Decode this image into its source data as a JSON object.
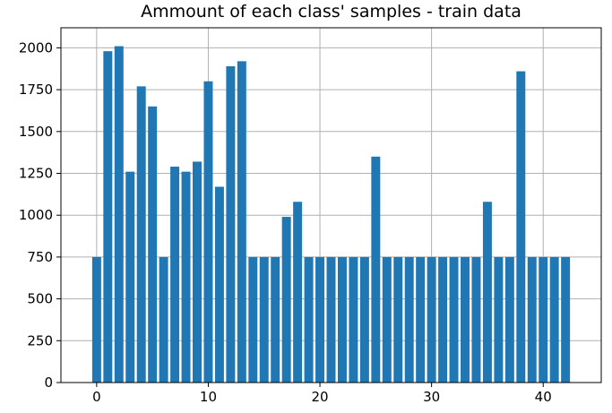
{
  "chart_data": {
    "type": "bar",
    "title": "Ammount of each class' samples - train data",
    "xlabel": "",
    "ylabel": "",
    "categories": [
      0,
      1,
      2,
      3,
      4,
      5,
      6,
      7,
      8,
      9,
      10,
      11,
      12,
      13,
      14,
      15,
      16,
      17,
      18,
      19,
      20,
      21,
      22,
      23,
      24,
      25,
      26,
      27,
      28,
      29,
      30,
      31,
      32,
      33,
      34,
      35,
      36,
      37,
      38,
      39,
      40,
      41,
      42
    ],
    "values": [
      750,
      1980,
      2010,
      1260,
      1770,
      1650,
      750,
      1290,
      1260,
      1320,
      1800,
      1170,
      1890,
      1920,
      750,
      750,
      750,
      990,
      1080,
      750,
      750,
      750,
      750,
      750,
      750,
      1350,
      750,
      750,
      750,
      750,
      750,
      750,
      750,
      750,
      750,
      1080,
      750,
      750,
      1860,
      750,
      750,
      750,
      750
    ],
    "xlim": [
      -3.2,
      45.2
    ],
    "ylim": [
      0,
      2120
    ],
    "xticks": [
      0,
      10,
      20,
      30,
      40
    ],
    "yticks": [
      0,
      250,
      500,
      750,
      1000,
      1250,
      1500,
      1750,
      2000
    ],
    "grid": true,
    "bar_color": "#1f77b4",
    "grid_color": "#b0b0b0"
  }
}
